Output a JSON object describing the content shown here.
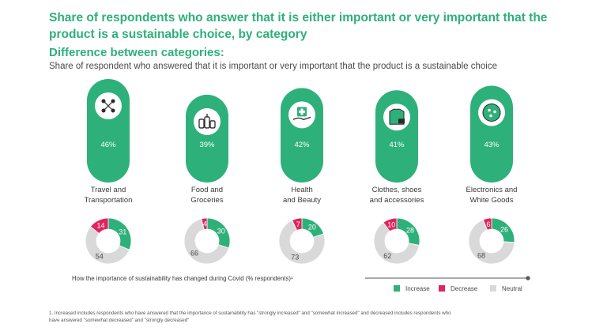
{
  "title": "Share of respondents who answer that it is either important or very important that the product is a sustainable choice, by category",
  "subtitle": "Difference between categories:",
  "description": "Share of respondent who answered that it is important or very important that the product is a sustainable choice",
  "change_label": "How the importance of sustainability has changed during Covid (% respondents)¹",
  "footnote": "1. Increased includes respondents who have answered that the importance of sustainability has \"strongly increased\" and \"somewhat increased\" and decreased includes respondents who have answered \"somewhat decreased\" and \"strongly decreased\"",
  "colors": {
    "accent": "#2eb07a",
    "increase": "#2eb07a",
    "decrease": "#e0245e",
    "neutral": "#d9d9d9",
    "text": "#4a4a4a"
  },
  "chart_data": {
    "type": "pie",
    "categories": [
      {
        "label_lines": [
          "Travel and",
          "Transportation"
        ],
        "icon": "travel-icon",
        "share": "46%",
        "share_value": 46,
        "increase": 31,
        "decrease": 14,
        "neutral": 54
      },
      {
        "label_lines": [
          "Food and",
          "Groceries"
        ],
        "icon": "bottles-icon",
        "share": "39%",
        "share_value": 39,
        "increase": 30,
        "decrease": 4,
        "neutral": 66
      },
      {
        "label_lines": [
          "Health",
          "and Beauty"
        ],
        "icon": "health-hand-icon",
        "share": "42%",
        "share_value": 42,
        "increase": 20,
        "decrease": 7,
        "neutral": 73
      },
      {
        "label_lines": [
          "Clothes, shoes",
          "and accessories"
        ],
        "icon": "clothes-icon",
        "share": "41%",
        "share_value": 41,
        "increase": 28,
        "decrease": 10,
        "neutral": 62
      },
      {
        "label_lines": [
          "Electronics and",
          "White Goods"
        ],
        "icon": "electronics-icon",
        "share": "43%",
        "share_value": 43,
        "increase": 26,
        "decrease": 6,
        "neutral": 68
      }
    ],
    "legend": [
      {
        "key": "increase",
        "label": "Increase"
      },
      {
        "key": "decrease",
        "label": "Decrease"
      },
      {
        "key": "neutral",
        "label": "Neutral"
      }
    ]
  }
}
